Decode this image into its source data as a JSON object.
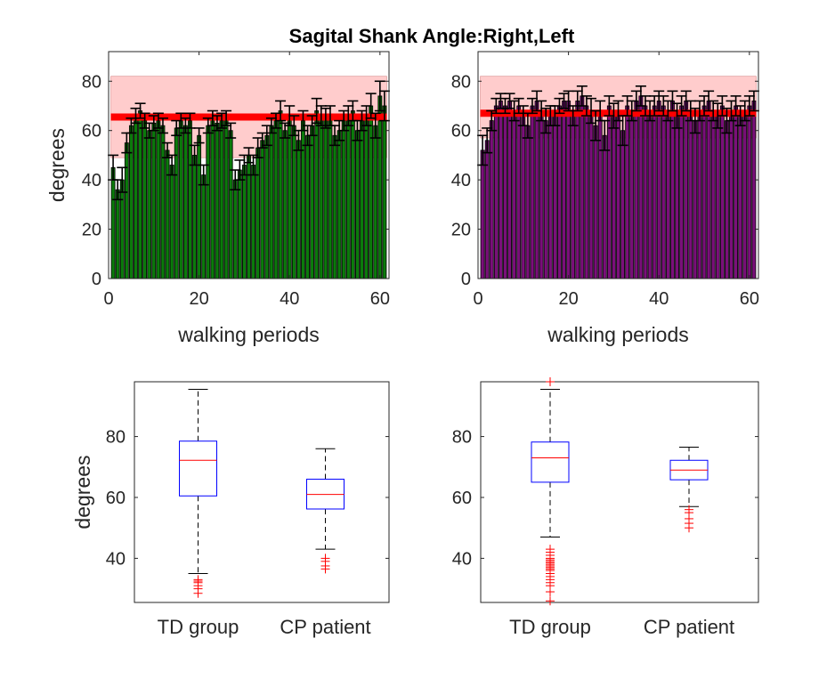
{
  "figure": {
    "title": "Sagital Shank Angle:Right,Left"
  },
  "chart_data": [
    {
      "type": "bar",
      "side": "right",
      "xlabel": "walking periods",
      "ylabel": "degrees",
      "xlim": [
        0,
        62
      ],
      "ylim": [
        0,
        92
      ],
      "xticks": [
        0,
        20,
        40,
        60
      ],
      "yticks": [
        0,
        20,
        40,
        60,
        80
      ],
      "bar_color": "#0b7a0b",
      "reference_band": {
        "low": 49,
        "high": 82,
        "color": "#ffcccc"
      },
      "reference_mean": {
        "value": 65.5,
        "color": "#ff0000"
      },
      "x": [
        1,
        2,
        3,
        4,
        5,
        6,
        7,
        8,
        9,
        10,
        11,
        12,
        13,
        14,
        15,
        16,
        17,
        18,
        19,
        20,
        21,
        22,
        23,
        24,
        25,
        26,
        27,
        28,
        29,
        30,
        31,
        32,
        33,
        34,
        35,
        36,
        37,
        38,
        39,
        40,
        41,
        42,
        43,
        44,
        45,
        46,
        47,
        48,
        49,
        50,
        51,
        52,
        53,
        54,
        55,
        56,
        57,
        58,
        59,
        60,
        61
      ],
      "values": [
        45,
        36,
        40,
        55,
        62,
        66,
        68,
        64,
        60,
        63,
        64,
        62,
        52,
        46,
        61,
        64,
        62,
        64,
        50,
        58,
        42,
        62,
        65,
        63,
        64,
        65,
        60,
        40,
        44,
        46,
        50,
        46,
        53,
        56,
        58,
        62,
        64,
        68,
        60,
        66,
        62,
        56,
        64,
        58,
        62,
        68,
        66,
        65,
        66,
        58,
        60,
        64,
        66,
        68,
        60,
        64,
        66,
        70,
        62,
        74,
        70
      ],
      "errors": [
        5,
        4,
        5,
        4,
        3,
        3,
        3,
        3,
        3,
        3,
        3,
        3,
        3,
        4,
        3,
        3,
        3,
        3,
        4,
        3,
        4,
        3,
        3,
        3,
        3,
        3,
        3,
        4,
        4,
        4,
        3,
        4,
        4,
        3,
        4,
        3,
        3,
        4,
        3,
        4,
        4,
        4,
        4,
        4,
        4,
        5,
        4,
        4,
        4,
        4,
        4,
        4,
        4,
        4,
        4,
        4,
        4,
        5,
        5,
        6,
        6
      ]
    },
    {
      "type": "bar",
      "side": "left",
      "xlabel": "walking periods",
      "ylabel": "",
      "xlim": [
        0,
        62
      ],
      "ylim": [
        0,
        92
      ],
      "xticks": [
        0,
        20,
        40,
        60
      ],
      "yticks": [
        0,
        20,
        40,
        60,
        80
      ],
      "bar_color": "#7a0f7a",
      "reference_band": {
        "low": 57,
        "high": 82,
        "color": "#ffcccc"
      },
      "reference_mean": {
        "value": 67,
        "color": "#ff0000"
      },
      "x": [
        1,
        2,
        3,
        4,
        5,
        6,
        7,
        8,
        9,
        10,
        11,
        12,
        13,
        14,
        15,
        16,
        17,
        18,
        19,
        20,
        21,
        22,
        23,
        24,
        25,
        26,
        27,
        28,
        29,
        30,
        31,
        32,
        33,
        34,
        35,
        36,
        37,
        38,
        39,
        40,
        41,
        42,
        43,
        44,
        45,
        46,
        47,
        48,
        49,
        50,
        51,
        52,
        53,
        54,
        55,
        56,
        57,
        58,
        59,
        60,
        61
      ],
      "values": [
        52,
        56,
        64,
        70,
        72,
        70,
        72,
        68,
        70,
        66,
        62,
        70,
        72,
        68,
        64,
        66,
        66,
        70,
        72,
        72,
        66,
        72,
        74,
        70,
        68,
        62,
        68,
        58,
        70,
        66,
        68,
        60,
        70,
        68,
        72,
        74,
        70,
        68,
        70,
        72,
        70,
        68,
        72,
        66,
        70,
        72,
        68,
        64,
        68,
        70,
        72,
        68,
        66,
        70,
        64,
        68,
        70,
        66,
        68,
        70,
        72
      ],
      "errors": [
        6,
        5,
        4,
        3,
        3,
        3,
        3,
        4,
        3,
        4,
        5,
        3,
        4,
        4,
        5,
        4,
        4,
        3,
        3,
        4,
        4,
        4,
        4,
        4,
        5,
        6,
        4,
        6,
        4,
        5,
        4,
        6,
        4,
        4,
        4,
        4,
        4,
        4,
        4,
        4,
        4,
        4,
        4,
        5,
        4,
        4,
        4,
        5,
        4,
        4,
        4,
        4,
        5,
        4,
        5,
        4,
        4,
        4,
        4,
        4,
        4
      ]
    },
    {
      "type": "box",
      "side": "right",
      "ylabel": "degrees",
      "xlabel": "",
      "ylim": [
        25.5,
        98
      ],
      "yticks": [
        40,
        60,
        80
      ],
      "categories": [
        "TD group",
        "CP patient"
      ],
      "box_color": "#0000ff",
      "median_color": "#ff0000",
      "outlier_color": "#ff0000",
      "boxes": [
        {
          "q1": 60.5,
          "median": 72.2,
          "q3": 78.5,
          "whisker_low": 35,
          "whisker_high": 95.5,
          "outliers": [
            28.5,
            30,
            31,
            32,
            32.5,
            33
          ]
        },
        {
          "q1": 56.2,
          "median": 61,
          "q3": 66,
          "whisker_low": 43,
          "whisker_high": 76,
          "outliers": [
            36.5,
            37.5,
            39,
            40
          ]
        }
      ]
    },
    {
      "type": "box",
      "side": "left",
      "ylabel": "",
      "xlabel": "",
      "ylim": [
        25.5,
        98
      ],
      "yticks": [
        40,
        60,
        80
      ],
      "categories": [
        "TD group",
        "CP patient"
      ],
      "box_color": "#0000ff",
      "median_color": "#ff0000",
      "outlier_color": "#ff0000",
      "boxes": [
        {
          "q1": 65,
          "median": 73,
          "q3": 78.2,
          "whisker_low": 47,
          "whisker_high": 95.5,
          "outliers": [
            26,
            29,
            31,
            32,
            33,
            34,
            35,
            36,
            36.5,
            37,
            37.5,
            38,
            38.5,
            39,
            39.5,
            40,
            41,
            42,
            43,
            98
          ]
        },
        {
          "q1": 65.8,
          "median": 69,
          "q3": 72.2,
          "whisker_low": 57,
          "whisker_high": 76.5,
          "outliers": [
            50,
            51.5,
            53,
            55,
            56
          ]
        }
      ]
    }
  ]
}
